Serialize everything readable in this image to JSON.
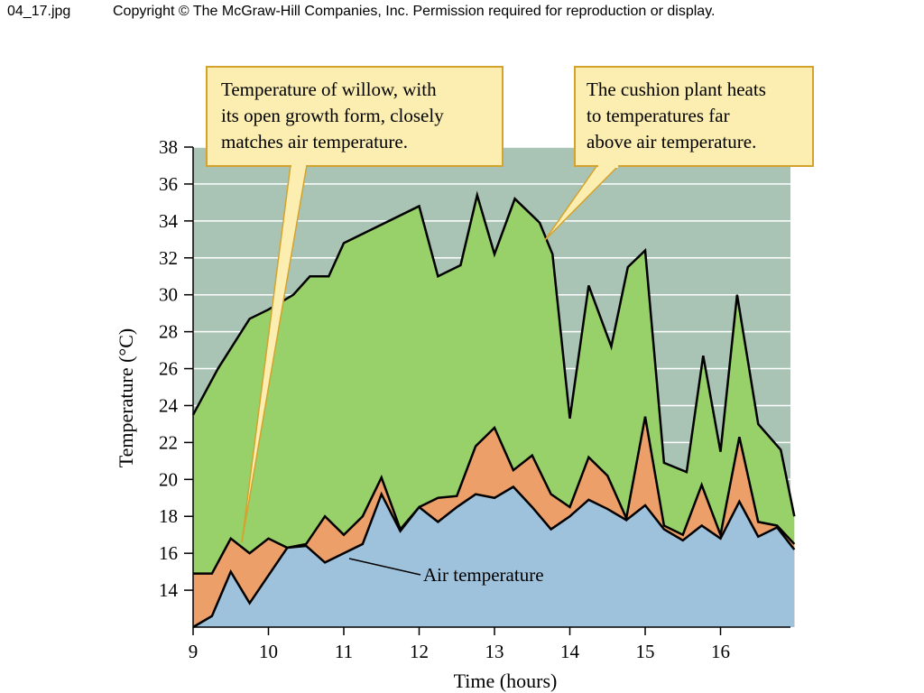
{
  "header": {
    "file_label": "04_17.jpg",
    "copyright": "Copyright © The McGraw-Hill Companies, Inc. Permission required for reproduction or display."
  },
  "colors": {
    "background": "#a9c4b4",
    "cushion_fill": "#98d06a",
    "willow_fill": "#ec9f68",
    "air_fill": "#9fc2dc",
    "grid": "#ffffff",
    "callout_fill": "#fbeeb0",
    "callout_border": "#d3a32d",
    "line": "#000000"
  },
  "chart_data": {
    "type": "area",
    "xlabel": "Time (hours)",
    "ylabel": "Temperature (°C)",
    "xlim": [
      9,
      16.98
    ],
    "ylim": [
      12,
      38
    ],
    "xticks": [
      "9",
      "10",
      "11",
      "12",
      "13",
      "14",
      "15",
      "16"
    ],
    "yticks": [
      "14",
      "16",
      "18",
      "20",
      "22",
      "24",
      "26",
      "28",
      "30",
      "32",
      "34",
      "36",
      "38"
    ],
    "grid": true,
    "series": [
      {
        "name": "Air temperature",
        "x": [
          9.0,
          9.25,
          9.5,
          9.75,
          10.0,
          10.25,
          10.5,
          10.75,
          11.0,
          11.25,
          11.5,
          11.75,
          12.0,
          12.25,
          12.5,
          12.75,
          13.0,
          13.25,
          13.5,
          13.75,
          14.0,
          14.25,
          14.5,
          14.75,
          15.0,
          15.25,
          15.5,
          15.75,
          16.0,
          16.25,
          16.5,
          16.75,
          16.98
        ],
        "y": [
          12.0,
          12.6,
          15.0,
          13.3,
          14.8,
          16.3,
          16.4,
          15.5,
          16.0,
          16.5,
          19.2,
          17.2,
          18.5,
          17.7,
          18.5,
          19.2,
          19.0,
          19.6,
          18.5,
          17.3,
          18.0,
          18.9,
          18.4,
          17.8,
          18.6,
          17.3,
          16.7,
          17.5,
          16.8,
          18.8,
          16.9,
          17.4,
          16.2
        ]
      },
      {
        "name": "Willow",
        "x": [
          9.0,
          9.25,
          9.5,
          9.75,
          10.0,
          10.25,
          10.5,
          10.75,
          11.0,
          11.25,
          11.5,
          11.75,
          12.0,
          12.25,
          12.5,
          12.75,
          13.0,
          13.25,
          13.5,
          13.75,
          14.0,
          14.25,
          14.5,
          14.75,
          15.0,
          15.25,
          15.5,
          15.75,
          16.0,
          16.25,
          16.5,
          16.75,
          16.98
        ],
        "y": [
          14.9,
          14.9,
          16.8,
          16.0,
          16.8,
          16.3,
          16.5,
          18.0,
          17.0,
          18.0,
          20.1,
          17.3,
          18.5,
          19.0,
          19.1,
          21.8,
          22.8,
          20.5,
          21.3,
          19.2,
          18.5,
          21.2,
          20.2,
          17.9,
          23.4,
          17.5,
          17.0,
          19.7,
          17.0,
          22.3,
          17.7,
          17.5,
          16.5
        ]
      },
      {
        "name": "Cushion plant",
        "x": [
          9.0,
          9.33,
          9.75,
          10.0,
          10.33,
          10.55,
          10.8,
          11.0,
          12.0,
          12.25,
          12.55,
          12.77,
          13.0,
          13.27,
          13.6,
          13.77,
          14.0,
          14.25,
          14.55,
          14.77,
          15.0,
          15.25,
          15.55,
          15.77,
          16.0,
          16.22,
          16.5,
          16.8,
          16.98
        ],
        "y": [
          23.5,
          26.0,
          28.7,
          29.2,
          30.0,
          31.0,
          31.0,
          32.8,
          34.8,
          31.0,
          31.6,
          35.4,
          32.2,
          35.2,
          33.9,
          32.2,
          23.3,
          30.5,
          27.2,
          31.5,
          32.4,
          20.9,
          20.4,
          26.7,
          21.5,
          30.0,
          23.0,
          21.6,
          18.0
        ]
      }
    ],
    "annotations": [
      "Temperature of willow, with\nits open growth form, closely\nmatches air temperature.",
      "The cushion plant heats\nto temperatures far\nabove air temperature.",
      "Air temperature"
    ]
  }
}
